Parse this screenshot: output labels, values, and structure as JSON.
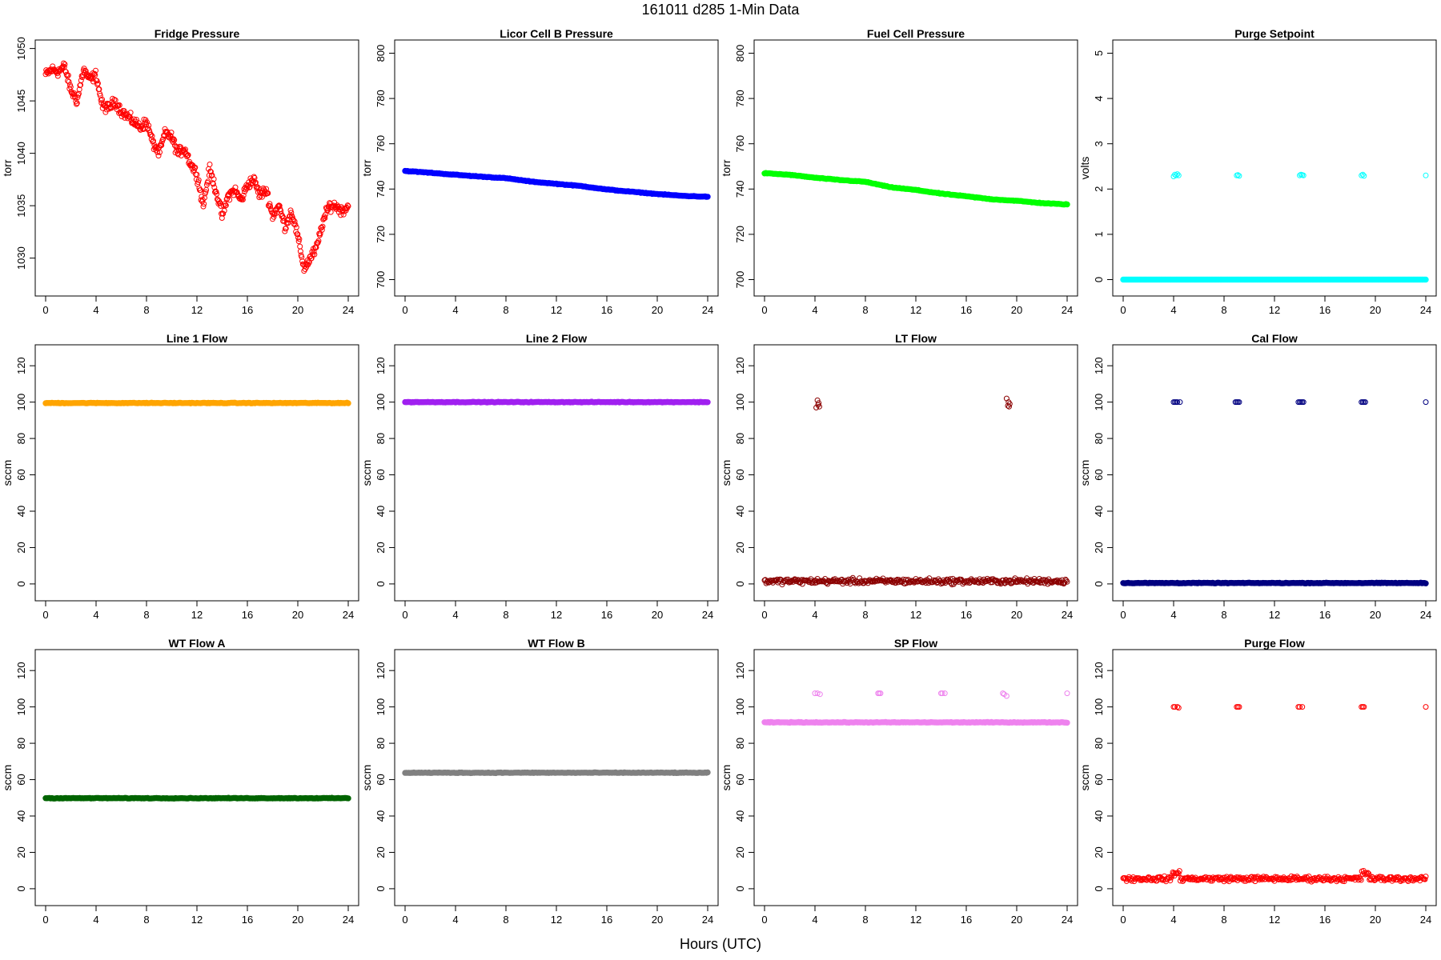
{
  "figure": {
    "title": "161011    d285    1-Min Data",
    "xlabel": "Hours (UTC)"
  },
  "chart_data": [
    {
      "type": "scatter",
      "title": "Fridge Pressure",
      "ylabel": "torr",
      "color": "#ff0000",
      "xlim": [
        0,
        24
      ],
      "ylim": [
        1027.3,
        1050.2
      ],
      "xticks": [
        0,
        4,
        8,
        12,
        16,
        20,
        24
      ],
      "yticks": [
        1030,
        1035,
        1040,
        1045,
        1050
      ],
      "series": [
        {
          "x": [
            0,
            0.5,
            1,
            1.5,
            2,
            2.5,
            3,
            3.5,
            4,
            4.5,
            5,
            5.5,
            6,
            6.5,
            7,
            7.5,
            8,
            8.5,
            9,
            9.5,
            10,
            10.5,
            11,
            11.5,
            12,
            12.5,
            13,
            13.5,
            14,
            14.5,
            15,
            15.5,
            16,
            16.5,
            17,
            17.5,
            18,
            18.5,
            19,
            19.5,
            20,
            20.5,
            21,
            21.5,
            22,
            22.5,
            23,
            23.5,
            24
          ],
          "y": [
            1047.5,
            1048,
            1047.8,
            1048.3,
            1046,
            1045,
            1048,
            1047,
            1047.5,
            1044.5,
            1044.3,
            1045,
            1044,
            1043.5,
            1043,
            1042.5,
            1043,
            1041,
            1040,
            1042,
            1041.5,
            1040,
            1040.5,
            1039,
            1038,
            1035,
            1038.5,
            1036.5,
            1034,
            1036,
            1036.5,
            1035.5,
            1037,
            1037.5,
            1036,
            1036.5,
            1034,
            1035,
            1033,
            1034.5,
            1032,
            1029,
            1030,
            1031,
            1033.5,
            1035,
            1035,
            1034.5,
            1035
          ]
        }
      ]
    },
    {
      "type": "scatter",
      "title": "Licor Cell B Pressure",
      "ylabel": "torr",
      "color": "#0000ff",
      "xlim": [
        0,
        24
      ],
      "ylim": [
        697,
        803
      ],
      "xticks": [
        0,
        4,
        8,
        12,
        16,
        20,
        24
      ],
      "yticks": [
        700,
        720,
        740,
        760,
        780,
        800
      ],
      "series": [
        {
          "x": [
            0,
            2,
            4,
            6,
            8,
            10,
            12,
            14,
            16,
            18,
            20,
            22,
            24
          ],
          "y": [
            748,
            747.2,
            746.3,
            745.5,
            744.8,
            743.3,
            742.3,
            741.3,
            739.8,
            738.8,
            737.8,
            737,
            736.6
          ]
        }
      ]
    },
    {
      "type": "scatter",
      "title": "Fuel Cell Pressure",
      "ylabel": "torr",
      "color": "#00ff00",
      "xlim": [
        0,
        24
      ],
      "ylim": [
        697,
        803
      ],
      "xticks": [
        0,
        4,
        8,
        12,
        16,
        20,
        24
      ],
      "yticks": [
        700,
        720,
        740,
        760,
        780,
        800
      ],
      "series": [
        {
          "x": [
            0,
            2,
            4,
            6,
            8,
            10,
            12,
            14,
            16,
            18,
            20,
            22,
            24
          ],
          "y": [
            747,
            746.3,
            745,
            744,
            743.2,
            740.8,
            739.6,
            738,
            736.8,
            735.5,
            734.8,
            733.8,
            733.2
          ]
        }
      ]
    },
    {
      "type": "scatter",
      "title": "Purge Setpoint",
      "ylabel": "volts",
      "color": "#00ffff",
      "xlim": [
        0,
        24
      ],
      "ylim": [
        -0.15,
        5.15
      ],
      "xticks": [
        0,
        4,
        8,
        12,
        16,
        20,
        24
      ],
      "yticks": [
        0,
        1,
        2,
        3,
        4,
        5
      ],
      "series": [
        {
          "x": [
            0,
            24
          ],
          "y": [
            0,
            0
          ]
        },
        {
          "x": [
            4,
            4.1,
            4.2,
            4.3,
            4.4,
            9,
            9.1,
            9.2,
            14,
            14.1,
            14.2,
            14.3,
            18.9,
            19,
            19.1,
            24
          ],
          "y": [
            2.28,
            2.32,
            2.3,
            2.33,
            2.3,
            2.3,
            2.31,
            2.29,
            2.3,
            2.32,
            2.31,
            2.3,
            2.3,
            2.32,
            2.29,
            2.3
          ]
        }
      ]
    },
    {
      "type": "scatter",
      "title": "Line 1 Flow",
      "ylabel": "sccm",
      "color": "#ffa500",
      "xlim": [
        0,
        24
      ],
      "ylim": [
        -4,
        128
      ],
      "xticks": [
        0,
        4,
        8,
        12,
        16,
        20,
        24
      ],
      "yticks": [
        0,
        20,
        40,
        60,
        80,
        100,
        120
      ],
      "series": [
        {
          "x": [
            0,
            24
          ],
          "y": [
            99.5,
            99.5
          ]
        }
      ]
    },
    {
      "type": "scatter",
      "title": "Line 2 Flow",
      "ylabel": "sccm",
      "color": "#a020f0",
      "xlim": [
        0,
        24
      ],
      "ylim": [
        -4,
        128
      ],
      "xticks": [
        0,
        4,
        8,
        12,
        16,
        20,
        24
      ],
      "yticks": [
        0,
        20,
        40,
        60,
        80,
        100,
        120
      ],
      "series": [
        {
          "x": [
            0,
            24
          ],
          "y": [
            100,
            100
          ]
        }
      ]
    },
    {
      "type": "scatter",
      "title": "LT Flow",
      "ylabel": "sccm",
      "color": "#8b0000",
      "xlim": [
        0,
        24
      ],
      "ylim": [
        -4,
        128
      ],
      "xticks": [
        0,
        4,
        8,
        12,
        16,
        20,
        24
      ],
      "yticks": [
        0,
        20,
        40,
        60,
        80,
        100,
        120
      ],
      "series": [
        {
          "x": [
            0,
            24
          ],
          "y": [
            1.5,
            1.5
          ]
        },
        {
          "x": [
            4.1,
            4.2,
            4.25,
            4.3,
            4.35,
            19.2,
            19.3,
            19.35,
            19.4,
            19.45
          ],
          "y": [
            97,
            101,
            98.5,
            99.5,
            97.5,
            102,
            98,
            100,
            97.5,
            99
          ]
        }
      ]
    },
    {
      "type": "scatter",
      "title": "Cal Flow",
      "ylabel": "sccm",
      "color": "#000080",
      "xlim": [
        0,
        24
      ],
      "ylim": [
        -4,
        128
      ],
      "xticks": [
        0,
        4,
        8,
        12,
        16,
        20,
        24
      ],
      "yticks": [
        0,
        20,
        40,
        60,
        80,
        100,
        120
      ],
      "series": [
        {
          "x": [
            0,
            24
          ],
          "y": [
            0.5,
            0.5
          ]
        },
        {
          "x": [
            4,
            4.1,
            4.2,
            4.3,
            4.5,
            8.9,
            9,
            9.1,
            9.2,
            13.9,
            14,
            14.1,
            14.2,
            14.3,
            18.9,
            19,
            19.1,
            19.2,
            24
          ],
          "y": [
            100,
            100,
            100,
            100,
            100,
            100,
            100,
            100,
            100,
            100,
            100,
            100,
            100,
            100,
            100,
            100,
            100,
            100,
            100
          ]
        }
      ]
    },
    {
      "type": "scatter",
      "title": "WT Flow A",
      "ylabel": "sccm",
      "color": "#006400",
      "xlim": [
        0,
        24
      ],
      "ylim": [
        -4,
        128
      ],
      "xticks": [
        0,
        4,
        8,
        12,
        16,
        20,
        24
      ],
      "yticks": [
        0,
        20,
        40,
        60,
        80,
        100,
        120
      ],
      "series": [
        {
          "x": [
            0,
            24
          ],
          "y": [
            49.8,
            49.8
          ]
        }
      ]
    },
    {
      "type": "scatter",
      "title": "WT Flow B",
      "ylabel": "sccm",
      "color": "#808080",
      "xlim": [
        0,
        24
      ],
      "ylim": [
        -4,
        128
      ],
      "xticks": [
        0,
        4,
        8,
        12,
        16,
        20,
        24
      ],
      "yticks": [
        0,
        20,
        40,
        60,
        80,
        100,
        120
      ],
      "series": [
        {
          "x": [
            0,
            24
          ],
          "y": [
            63.8,
            63.8
          ]
        }
      ]
    },
    {
      "type": "scatter",
      "title": "SP Flow",
      "ylabel": "sccm",
      "color": "#ee82ee",
      "xlim": [
        0,
        24
      ],
      "ylim": [
        -4,
        128
      ],
      "xticks": [
        0,
        4,
        8,
        12,
        16,
        20,
        24
      ],
      "yticks": [
        0,
        20,
        40,
        60,
        80,
        100,
        120
      ],
      "series": [
        {
          "x": [
            0,
            24
          ],
          "y": [
            91.5,
            91.5
          ]
        },
        {
          "x": [
            4,
            4.2,
            4.4,
            9,
            9.1,
            9.2,
            14,
            14.1,
            14.3,
            18.9,
            19,
            19.2,
            24
          ],
          "y": [
            107.5,
            107.5,
            107,
            107.5,
            107.5,
            107.5,
            107.5,
            107.5,
            107.5,
            107.5,
            107,
            106,
            107.5
          ]
        }
      ]
    },
    {
      "type": "scatter",
      "title": "Purge Flow",
      "ylabel": "sccm",
      "color": "#ff0000",
      "xlim": [
        0,
        24
      ],
      "ylim": [
        -4,
        128
      ],
      "xticks": [
        0,
        4,
        8,
        12,
        16,
        20,
        24
      ],
      "yticks": [
        0,
        20,
        40,
        60,
        80,
        100,
        120
      ],
      "series": [
        {
          "x": [
            0,
            24
          ],
          "y": [
            5.5,
            5.5
          ]
        },
        {
          "x": [
            4,
            4.1,
            4.3,
            4.4,
            9,
            9.1,
            9.2,
            13.9,
            14,
            14.2,
            18.9,
            19,
            19.1,
            24
          ],
          "y": [
            100,
            100,
            100,
            99.5,
            100,
            100,
            100,
            100,
            100,
            100,
            100,
            100,
            100,
            100
          ]
        }
      ]
    }
  ]
}
